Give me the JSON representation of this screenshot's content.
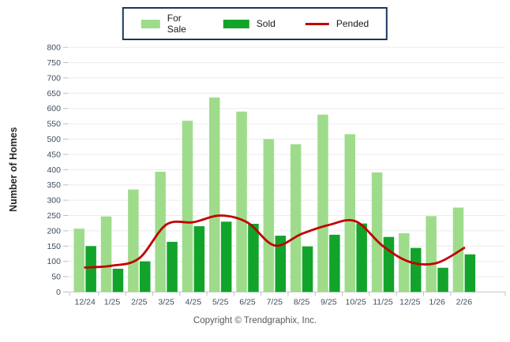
{
  "y_axis": {
    "title": "Number of Homes",
    "min": 0,
    "max": 800,
    "step": 50
  },
  "footer": {
    "text": "Copyright © Trendgraphix, Inc."
  },
  "chart_data": {
    "type": "bar",
    "subtype": "grouped bars with smoothed line overlay",
    "title": "",
    "xlabel": "",
    "ylabel": "Number of Homes",
    "ylim": [
      0,
      800
    ],
    "ytick_step": 50,
    "grid": "horizontal",
    "legend_position": "top-center",
    "categories": [
      "12/24",
      "1/25",
      "2/25",
      "3/25",
      "4/25",
      "5/25",
      "6/25",
      "7/25",
      "8/25",
      "9/25",
      "10/25",
      "11/25",
      "12/25",
      "1/26",
      "2/26"
    ],
    "series": [
      {
        "name": "For Sale",
        "type": "bar",
        "color": "#9EDC8B",
        "values": [
          207,
          247,
          335,
          393,
          560,
          636,
          590,
          500,
          483,
          580,
          516,
          391,
          192,
          248,
          276
        ]
      },
      {
        "name": "Sold",
        "type": "bar",
        "color": "#12A32B",
        "values": [
          150,
          76,
          100,
          164,
          215,
          230,
          223,
          184,
          149,
          187,
          224,
          180,
          144,
          79,
          123
        ]
      },
      {
        "name": "Pended",
        "type": "line",
        "color": "#C00000",
        "values": [
          80,
          86,
          110,
          220,
          228,
          250,
          227,
          152,
          190,
          219,
          231,
          150,
          98,
          95,
          144
        ]
      }
    ],
    "colors": {
      "gridline": "#ECECEC",
      "axis_line": "#C6C6C6",
      "tick": "#C0C0C0",
      "axis_text": "#3F4D5E",
      "legend_border": "#17375E"
    }
  }
}
